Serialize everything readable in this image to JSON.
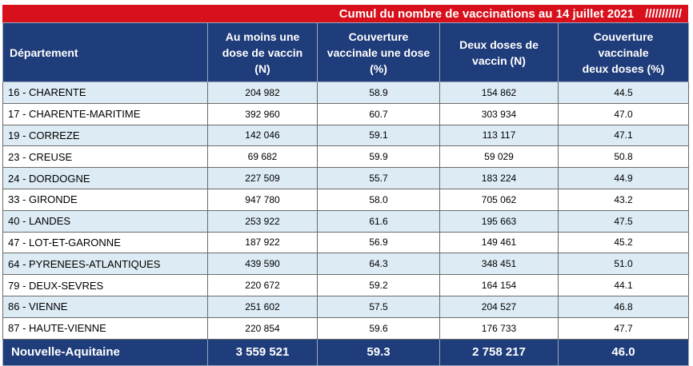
{
  "title": "Cumul du nombre de vaccinations au 14 juillet 2021",
  "title_decoration": "///////////",
  "colors": {
    "header_bg": "#1f3d7a",
    "title_bg": "#d8101c",
    "row_alt_bg": "#dcebf4"
  },
  "headers": {
    "department": "Département",
    "one_dose_l1": "Au moins une",
    "one_dose_l2": "dose de vaccin",
    "one_dose_l3": "(N)",
    "cov_one_l1": "Couverture",
    "cov_one_l2": "vaccinale une dose",
    "cov_one_l3": "(%)",
    "two_doses_l1": "Deux doses de",
    "two_doses_l2": "vaccin (N)",
    "cov_two_l1": "Couverture",
    "cov_two_l2": "vaccinale",
    "cov_two_l3": "deux doses (%)"
  },
  "rows": [
    {
      "department": "16 - CHARENTE",
      "one_dose": "204 982",
      "cov_one": "58.9",
      "two_doses": "154 862",
      "cov_two": "44.5"
    },
    {
      "department": "17 - CHARENTE-MARITIME",
      "one_dose": "392 960",
      "cov_one": "60.7",
      "two_doses": "303 934",
      "cov_two": "47.0"
    },
    {
      "department": "19 - CORREZE",
      "one_dose": "142 046",
      "cov_one": "59.1",
      "two_doses": "113 117",
      "cov_two": "47.1"
    },
    {
      "department": "23 - CREUSE",
      "one_dose": "69 682",
      "cov_one": "59.9",
      "two_doses": "59 029",
      "cov_two": "50.8"
    },
    {
      "department": "24 - DORDOGNE",
      "one_dose": "227 509",
      "cov_one": "55.7",
      "two_doses": "183 224",
      "cov_two": "44.9"
    },
    {
      "department": "33 - GIRONDE",
      "one_dose": "947 780",
      "cov_one": "58.0",
      "two_doses": "705 062",
      "cov_two": "43.2"
    },
    {
      "department": "40 - LANDES",
      "one_dose": "253 922",
      "cov_one": "61.6",
      "two_doses": "195 663",
      "cov_two": "47.5"
    },
    {
      "department": "47 - LOT-ET-GARONNE",
      "one_dose": "187 922",
      "cov_one": "56.9",
      "two_doses": "149 461",
      "cov_two": "45.2"
    },
    {
      "department": "64 - PYRENEES-ATLANTIQUES",
      "one_dose": "439 590",
      "cov_one": "64.3",
      "two_doses": "348 451",
      "cov_two": "51.0"
    },
    {
      "department": "79 - DEUX-SEVRES",
      "one_dose": "220 672",
      "cov_one": "59.2",
      "two_doses": "164 154",
      "cov_two": "44.1"
    },
    {
      "department": "86 - VIENNE",
      "one_dose": "251 602",
      "cov_one": "57.5",
      "two_doses": "204 527",
      "cov_two": "46.8"
    },
    {
      "department": "87 - HAUTE-VIENNE",
      "one_dose": "220 854",
      "cov_one": "59.6",
      "two_doses": "176 733",
      "cov_two": "47.7"
    }
  ],
  "total": {
    "department": "Nouvelle-Aquitaine",
    "one_dose": "3 559 521",
    "cov_one": "59.3",
    "two_doses": "2 758 217",
    "cov_two": "46.0"
  }
}
